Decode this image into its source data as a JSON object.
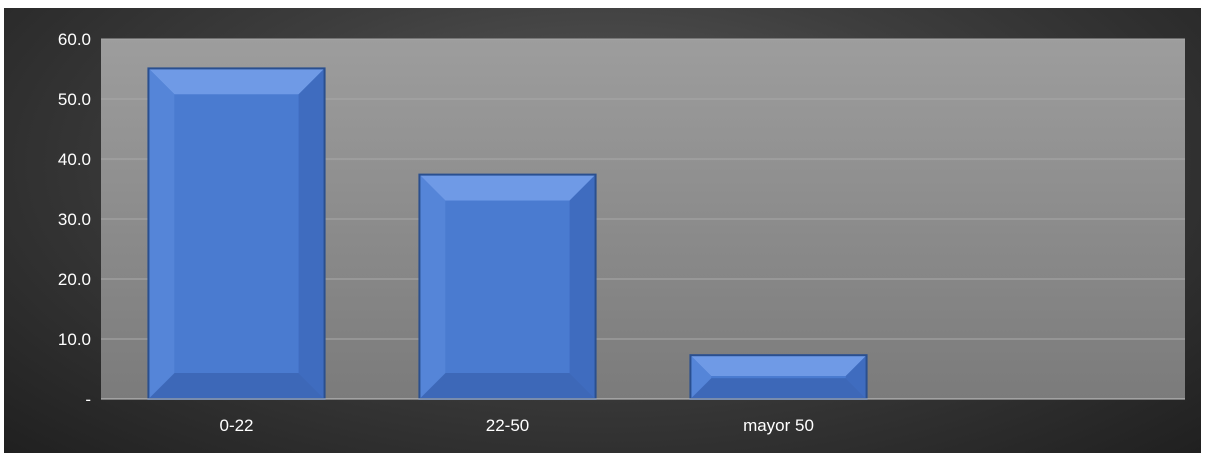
{
  "chart_data": {
    "type": "bar",
    "categories": [
      "0-22",
      "22-50",
      "mayor 50",
      ""
    ],
    "values": [
      55.1,
      37.4,
      7.3,
      0
    ],
    "ylim": [
      0,
      60
    ],
    "yticks": [
      0,
      10,
      20,
      30,
      40,
      50,
      60
    ],
    "ytick_labels": [
      "-",
      "10.0",
      "20.0",
      "30.0",
      "40.0",
      "50.0",
      "60.0"
    ],
    "grid": true,
    "legend": "none",
    "bar_color": "#4a7bd0",
    "plot_background": "#8a8a8a",
    "frame_background": "#3a3a3a"
  }
}
